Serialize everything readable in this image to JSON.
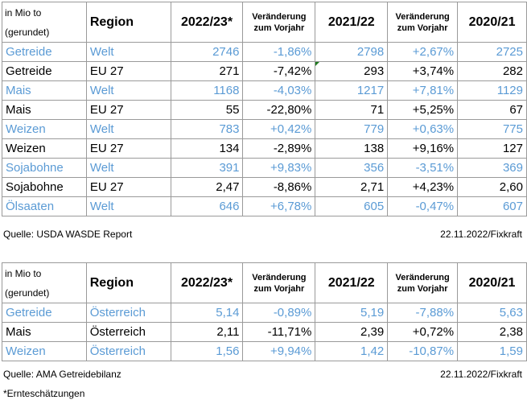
{
  "table1": {
    "header": {
      "unit_line1": "in Mio to",
      "unit_line2": "(gerundet)",
      "region": "Region",
      "year1": "2022/23*",
      "change_line1": "Veränderung",
      "change_line2": "zum Vorjahr",
      "year2": "2021/22",
      "year3": "2020/21"
    },
    "rows": [
      {
        "crop": "Getreide",
        "region": "Welt",
        "v1": "2746",
        "c1": "-1,86%",
        "v2": "2798",
        "c2": "+2,67%",
        "v3": "2725",
        "highlight": true
      },
      {
        "crop": "Getreide",
        "region": "EU 27",
        "v1": "271",
        "c1": "-7,42%",
        "v2": "293",
        "c2": "+3,74%",
        "v3": "282",
        "highlight": false
      },
      {
        "crop": "Mais",
        "region": "Welt",
        "v1": "1168",
        "c1": "-4,03%",
        "v2": "1217",
        "c2": "+7,81%",
        "v3": "1129",
        "highlight": true
      },
      {
        "crop": "Mais",
        "region": "EU 27",
        "v1": "55",
        "c1": "-22,80%",
        "v2": "71",
        "c2": "+5,25%",
        "v3": "67",
        "highlight": false
      },
      {
        "crop": "Weizen",
        "region": "Welt",
        "v1": "783",
        "c1": "+0,42%",
        "v2": "779",
        "c2": "+0,63%",
        "v3": "775",
        "highlight": true
      },
      {
        "crop": "Weizen",
        "region": "EU 27",
        "v1": "134",
        "c1": "-2,89%",
        "v2": "138",
        "c2": "+9,16%",
        "v3": "127",
        "highlight": false
      },
      {
        "crop": "Sojabohne",
        "region": "Welt",
        "v1": "391",
        "c1": "+9,83%",
        "v2": "356",
        "c2": "-3,51%",
        "v3": "369",
        "highlight": true
      },
      {
        "crop": "Sojabohne",
        "region": "EU 27",
        "v1": "2,47",
        "c1": "-8,86%",
        "v2": "2,71",
        "c2": "+4,23%",
        "v3": "2,60",
        "highlight": false
      },
      {
        "crop": "Ölsaaten",
        "region": "Welt",
        "v1": "646",
        "c1": "+6,78%",
        "v2": "605",
        "c2": "-0,47%",
        "v3": "607",
        "highlight": true
      }
    ],
    "source": "Quelle: USDA WASDE Report",
    "date": "22.11.2022/Fixkraft"
  },
  "table2": {
    "header": {
      "unit_line1": "in Mio to",
      "unit_line2": "(gerundet)",
      "region": "Region",
      "year1": "2022/23*",
      "change_line1": "Veränderung",
      "change_line2": "zum Vorjahr",
      "year2": "2021/22",
      "year3": "2020/21"
    },
    "rows": [
      {
        "crop": "Getreide",
        "region": "Österreich",
        "v1": "5,14",
        "c1": "-0,89%",
        "v2": "5,19",
        "c2": "-7,88%",
        "v3": "5,63",
        "highlight": true
      },
      {
        "crop": "Mais",
        "region": "Österreich",
        "v1": "2,11",
        "c1": "-11,71%",
        "v2": "2,39",
        "c2": "+0,72%",
        "v3": "2,38",
        "highlight": false
      },
      {
        "crop": "Weizen",
        "region": "Österreich",
        "v1": "1,56",
        "c1": "+9,94%",
        "v2": "1,42",
        "c2": "-10,87%",
        "v3": "1,59",
        "highlight": true
      }
    ],
    "source": "Quelle: AMA Getreidebilanz",
    "date": "22.11.2022/Fixkraft"
  },
  "footnote": "*Ernteschätzungen",
  "colors": {
    "highlight_text": "#5b9bd5",
    "border": "#9a9a9a"
  }
}
